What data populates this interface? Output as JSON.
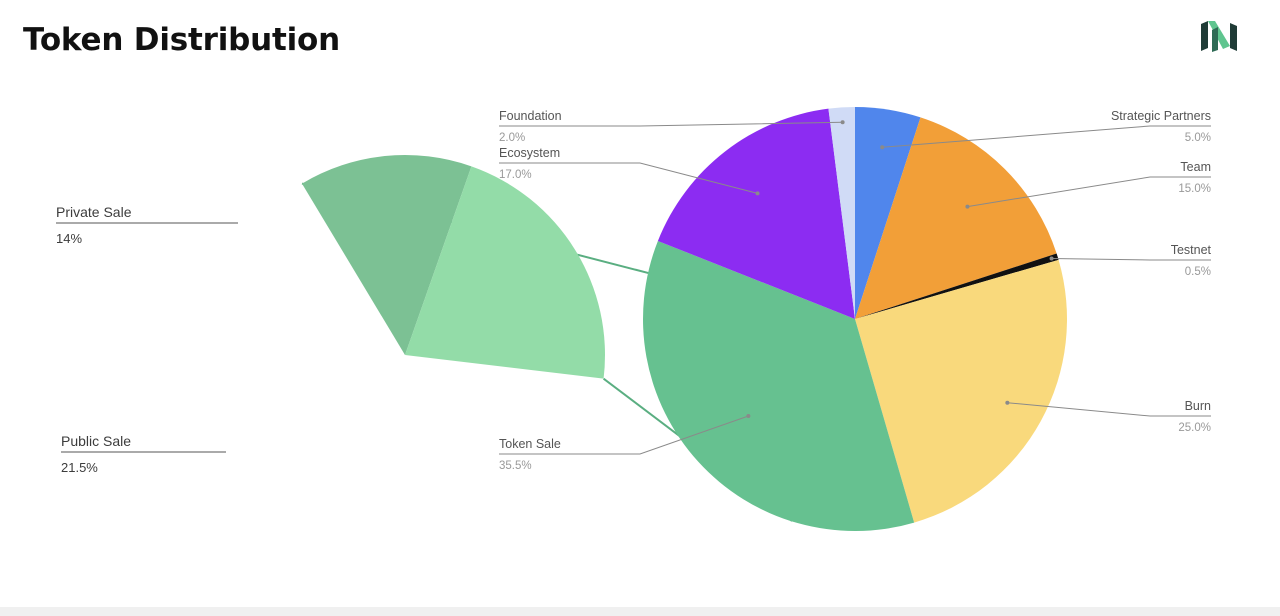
{
  "header": {
    "title": "Token Distribution"
  },
  "logo": {
    "icon": "brand-logo-icon",
    "colors": [
      "#1f3b36",
      "#5fc58f"
    ]
  },
  "chart_data": [
    {
      "type": "pie",
      "title": "",
      "slices": [
        {
          "label": "Strategic Partners",
          "pct_label": "5.0%",
          "value": 5.0,
          "color": "#5086ec"
        },
        {
          "label": "Team",
          "pct_label": "15.0%",
          "value": 15.0,
          "color": "#f29f38"
        },
        {
          "label": "Testnet",
          "pct_label": "0.5%",
          "value": 0.5,
          "color": "#111111"
        },
        {
          "label": "Burn",
          "pct_label": "25.0%",
          "value": 25.0,
          "color": "#f9d97c"
        },
        {
          "label": "Token Sale",
          "pct_label": "35.5%",
          "value": 35.5,
          "color": "#66c190"
        },
        {
          "label": "Ecosystem",
          "pct_label": "17.0%",
          "value": 17.0,
          "color": "#8c2cf2"
        },
        {
          "label": "Foundation",
          "pct_label": "2.0%",
          "value": 2.0,
          "color": "#d0dbf6"
        }
      ]
    },
    {
      "type": "pie",
      "title": "",
      "detail_of": "Token Sale",
      "slices": [
        {
          "label": "Private Sale",
          "pct_label": "14%",
          "value": 14.0,
          "color": "#7cc194"
        },
        {
          "label": "Public Sale",
          "pct_label": "21.5%",
          "value": 21.5,
          "color": "#93dca8"
        }
      ]
    }
  ]
}
